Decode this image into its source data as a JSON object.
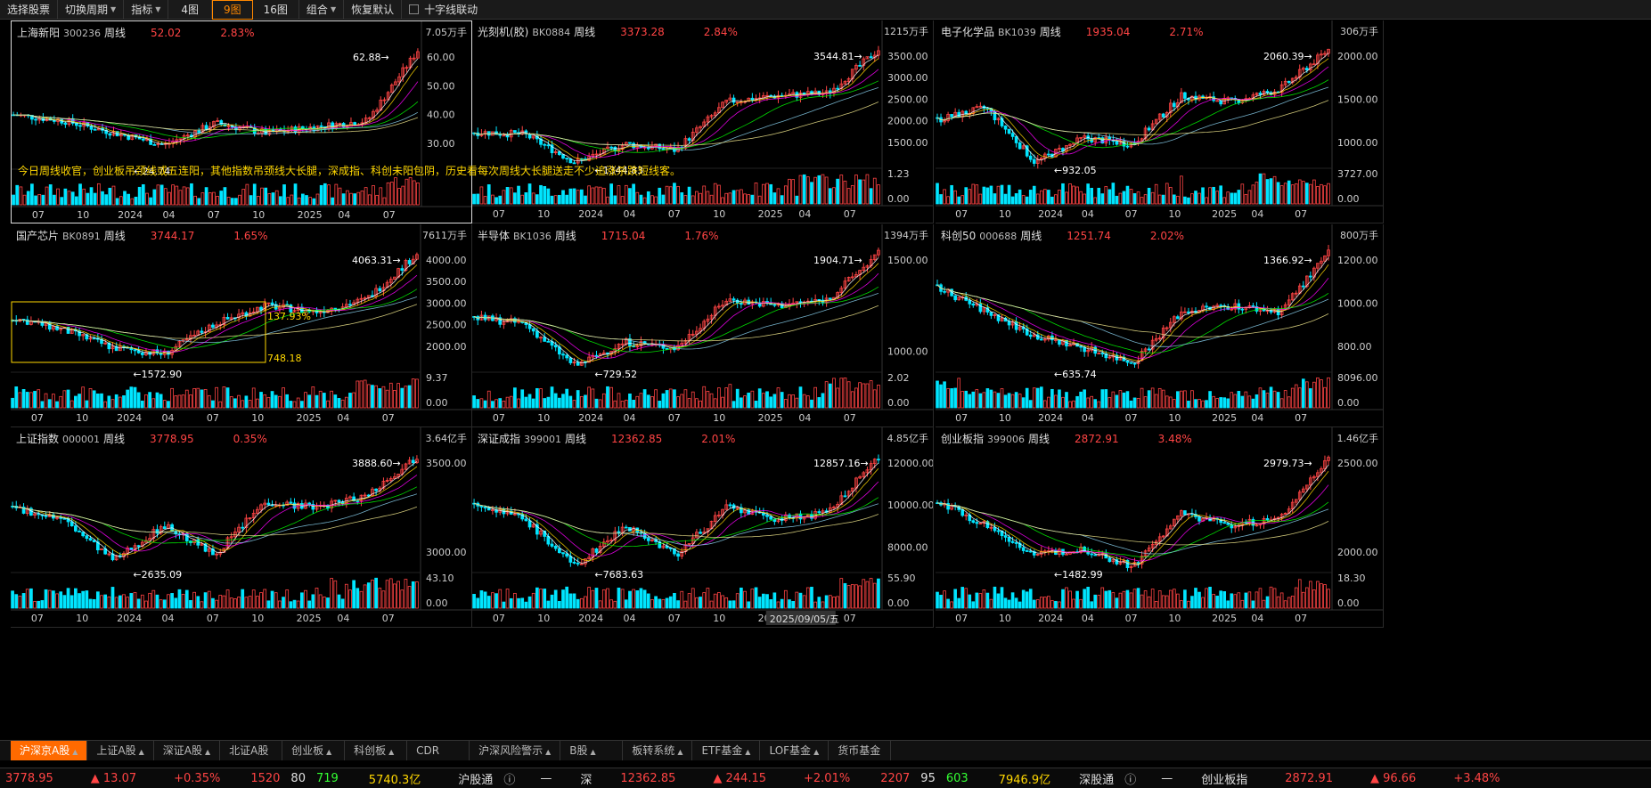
{
  "toolbar": {
    "items": [
      "选择股票",
      "切换周期",
      "指标",
      "4图",
      "9图",
      "16图",
      "组合",
      "恢复默认"
    ],
    "crosshair": "十字线联动"
  },
  "panels": [
    {
      "name": "上海新阳",
      "code": "300236",
      "period": "周线",
      "price": "52.02",
      "change": "2.83%",
      "vol": "7.05万手",
      "prices": [
        "60.00",
        "50.00",
        "40.00",
        "30.00"
      ],
      "vtop": "",
      "vbot": "",
      "high": "62.88",
      "low": "24.74",
      "dates": [
        "07",
        "10",
        "2024",
        "04",
        "07",
        "10",
        "2025",
        "04",
        "07"
      ]
    },
    {
      "name": "光刻机(胶)",
      "code": "BK0884",
      "period": "周线",
      "price": "3373.28",
      "change": "2.84%",
      "vol": "1215万手",
      "prices": [
        "3500.00",
        "3000.00",
        "2500.00",
        "2000.00",
        "1500.00"
      ],
      "vtop": "1.23",
      "vbot": "0.00",
      "high": "3544.81",
      "low": "1344.83",
      "dates": [
        "07",
        "10",
        "2024",
        "04",
        "07",
        "10",
        "2025",
        "04",
        "07"
      ]
    },
    {
      "name": "电子化学品",
      "code": "BK1039",
      "period": "周线",
      "price": "1935.04",
      "change": "2.71%",
      "vol": "306万手",
      "prices": [
        "2000.00",
        "1500.00",
        "1000.00"
      ],
      "vtop": "3727.00",
      "vbot": "0.00",
      "high": "2060.39",
      "low": "932.05",
      "dates": [
        "07",
        "10",
        "2024",
        "04",
        "07",
        "10",
        "2025",
        "04",
        "07"
      ]
    },
    {
      "name": "国产芯片",
      "code": "BK0891",
      "period": "周线",
      "price": "3744.17",
      "change": "1.65%",
      "vol": "7611万手",
      "prices": [
        "4000.00",
        "3500.00",
        "3000.00",
        "2500.00",
        "2000.00"
      ],
      "vtop": "9.37",
      "vbot": "0.00",
      "high": "4063.31",
      "low": "1572.90",
      "dates": [
        "07",
        "10",
        "2024",
        "04",
        "07",
        "10",
        "2025",
        "04",
        "07"
      ],
      "pct": "137.93%",
      "box_low": "748.18"
    },
    {
      "name": "半导体",
      "code": "BK1036",
      "period": "周线",
      "price": "1715.04",
      "change": "1.76%",
      "vol": "1394万手",
      "prices": [
        "1500.00",
        "1000.00"
      ],
      "vtop": "2.02",
      "vbot": "0.00",
      "high": "1904.71",
      "low": "729.52",
      "dates": [
        "07",
        "10",
        "2024",
        "04",
        "07",
        "10",
        "2025",
        "04",
        "07"
      ]
    },
    {
      "name": "科创50",
      "code": "000688",
      "period": "周线",
      "price": "1251.74",
      "change": "2.02%",
      "vol": "800万手",
      "prices": [
        "1200.00",
        "1000.00",
        "800.00"
      ],
      "vtop": "8096.00",
      "vbot": "0.00",
      "high": "1366.92",
      "low": "635.74",
      "dates": [
        "07",
        "10",
        "2024",
        "04",
        "07",
        "10",
        "2025",
        "04",
        "07"
      ]
    },
    {
      "name": "上证指数",
      "code": "000001",
      "period": "周线",
      "price": "3778.95",
      "change": "0.35%",
      "vol": "3.64亿手",
      "prices": [
        "3500.00",
        "3000.00"
      ],
      "vtop": "43.10",
      "vbot": "0.00",
      "high": "3888.60",
      "low": "2635.09",
      "dates": [
        "07",
        "10",
        "2024",
        "04",
        "07",
        "10",
        "2025",
        "04",
        "07"
      ]
    },
    {
      "name": "深证成指",
      "code": "399001",
      "period": "周线",
      "price": "12362.85",
      "change": "2.01%",
      "vol": "4.85亿手",
      "prices": [
        "12000.00",
        "10000.00",
        "8000.00"
      ],
      "vtop": "55.90",
      "vbot": "0.00",
      "high": "12857.16",
      "low": "7683.63",
      "dates": [
        "07",
        "10",
        "2024",
        "04",
        "07",
        "10",
        "2025",
        "04",
        "07"
      ],
      "date_tag": "2025/09/05/五"
    },
    {
      "name": "创业板指",
      "code": "399006",
      "period": "周线",
      "price": "2872.91",
      "change": "3.48%",
      "vol": "1.46亿手",
      "prices": [
        "2500.00",
        "2000.00"
      ],
      "vtop": "18.30",
      "vbot": "0.00",
      "high": "2979.73",
      "low": "1482.99",
      "dates": [
        "07",
        "10",
        "2024",
        "04",
        "07",
        "10",
        "2025",
        "04",
        "07"
      ]
    }
  ],
  "note": "今日周线收官，创业板吊颈线或五连阳，其他指数吊颈线大长腿，深成指、科创未阳包阴，历史看每次周线大长腿送走不少追涨杀跌短线客。",
  "tabs": [
    "沪深京A股",
    "上证A股",
    "深证A股",
    "北证A股",
    "创业板",
    "科创板",
    "CDR",
    "沪深风险警示",
    "B股",
    "板转系统",
    "ETF基金",
    "LOF基金",
    "货币基金"
  ],
  "status": {
    "sh_price": "3778.95",
    "sh_chg": "▲ 13.07",
    "sh_pct": "+0.35%",
    "sh_up": "1520",
    "sh_flat": "80",
    "sh_dn": "719",
    "sh_amt": "5740.3亿",
    "hgt": "沪股通",
    "hgt_val": "—",
    "sz": "深",
    "sz_price": "12362.85",
    "sz_chg": "▲ 244.15",
    "sz_pct": "+2.01%",
    "sz_up": "2207",
    "sz_flat": "95",
    "sz_dn": "603",
    "sz_amt": "7946.9亿",
    "sgt": "深股通",
    "sgt_val": "—",
    "cy": "创业板指",
    "cy_price": "2872.91",
    "cy_chg": "▲ 96.66",
    "cy_pct": "+3.48%"
  },
  "colors": {
    "up": "#ff4444",
    "down": "#00e5ff",
    "accent": "#ff6a00"
  }
}
